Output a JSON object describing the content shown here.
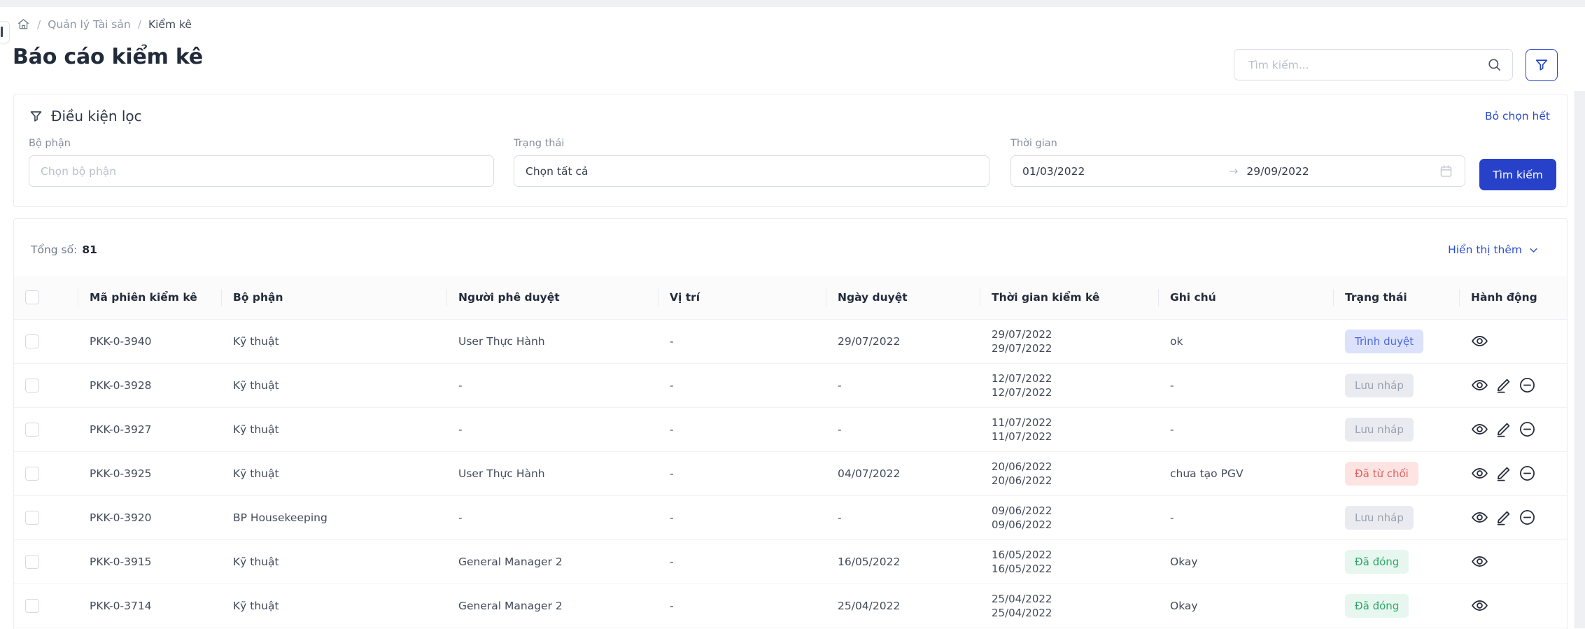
{
  "breadcrumb": {
    "separator": "/",
    "items": [
      "Quản lý Tài sản",
      "Kiểm kê"
    ]
  },
  "header": {
    "title": "Báo cáo kiểm kê",
    "search": {
      "placeholder": "Tìm kiếm..."
    }
  },
  "filter": {
    "title": "Điều kiện lọc",
    "clear_all": "Bỏ chọn hết",
    "fields": {
      "department": {
        "label": "Bộ phận",
        "placeholder": "Chọn bộ phận"
      },
      "status": {
        "label": "Trạng thái",
        "value": "Chọn tất cả"
      },
      "time": {
        "label": "Thời gian",
        "from": "01/03/2022",
        "to": "29/09/2022"
      }
    },
    "submit_label": "Tìm kiếm"
  },
  "summary": {
    "total_label": "Tổng số:",
    "total_value": "81",
    "show_more": "Hiển thị thêm"
  },
  "table": {
    "columns": [
      "Mã phiên kiểm kê",
      "Bộ phận",
      "Người phê duyệt",
      "Vị trí",
      "Ngày duyệt",
      "Thời gian kiểm kê",
      "Ghi chú",
      "Trạng thái",
      "Hành động"
    ],
    "column_keys": [
      "code",
      "department",
      "approver",
      "location",
      "approve-date",
      "period",
      "note",
      "status",
      "actions"
    ],
    "rows": [
      {
        "code": "PKK-0-3940",
        "department": "Kỹ thuật",
        "approver": "User Thực Hành",
        "location": "-",
        "approve_date": "29/07/2022",
        "period_from": "29/07/2022",
        "period_to": "29/07/2022",
        "note": "ok",
        "status": "Trình duyệt",
        "status_type": "submitted",
        "actions": [
          "view"
        ]
      },
      {
        "code": "PKK-0-3928",
        "department": "Kỹ thuật",
        "approver": "-",
        "location": "-",
        "approve_date": "-",
        "period_from": "12/07/2022",
        "period_to": "12/07/2022",
        "note": "-",
        "status": "Lưu nháp",
        "status_type": "draft",
        "actions": [
          "view",
          "edit",
          "remove"
        ]
      },
      {
        "code": "PKK-0-3927",
        "department": "Kỹ thuật",
        "approver": "-",
        "location": "-",
        "approve_date": "-",
        "period_from": "11/07/2022",
        "period_to": "11/07/2022",
        "note": "-",
        "status": "Lưu nháp",
        "status_type": "draft",
        "actions": [
          "view",
          "edit",
          "remove"
        ]
      },
      {
        "code": "PKK-0-3925",
        "department": "Kỹ thuật",
        "approver": "User Thực Hành",
        "location": "-",
        "approve_date": "04/07/2022",
        "period_from": "20/06/2022",
        "period_to": "20/06/2022",
        "note": "chưa tạo PGV",
        "status": "Đã từ chối",
        "status_type": "rejected",
        "actions": [
          "view",
          "edit",
          "remove"
        ]
      },
      {
        "code": "PKK-0-3920",
        "department": "BP Housekeeping",
        "approver": "-",
        "location": "-",
        "approve_date": "-",
        "period_from": "09/06/2022",
        "period_to": "09/06/2022",
        "note": "-",
        "status": "Lưu nháp",
        "status_type": "draft",
        "actions": [
          "view",
          "edit",
          "remove"
        ]
      },
      {
        "code": "PKK-0-3915",
        "department": "Kỹ thuật",
        "approver": "General Manager 2",
        "location": "-",
        "approve_date": "16/05/2022",
        "period_from": "16/05/2022",
        "period_to": "16/05/2022",
        "note": "Okay",
        "status": "Đã đóng",
        "status_type": "closed",
        "actions": [
          "view"
        ]
      },
      {
        "code": "PKK-0-3714",
        "department": "Kỹ thuật",
        "approver": "General Manager 2",
        "location": "-",
        "approve_date": "25/04/2022",
        "period_from": "25/04/2022",
        "period_to": "25/04/2022",
        "note": "Okay",
        "status": "Đã đóng",
        "status_type": "closed",
        "actions": [
          "view"
        ]
      }
    ],
    "status_styles": {
      "submitted": {
        "bg": "#dce2fb",
        "fg": "#4f68dd"
      },
      "draft": {
        "bg": "#e9ebf0",
        "fg": "#99a1af"
      },
      "rejected": {
        "bg": "#fde4e3",
        "fg": "#e0605d"
      },
      "closed": {
        "bg": "#e7f7ef",
        "fg": "#2ea869"
      }
    }
  },
  "colors": {
    "primary": "#2742c9",
    "link": "#2b4bd0",
    "header_text": "#222b3a"
  }
}
